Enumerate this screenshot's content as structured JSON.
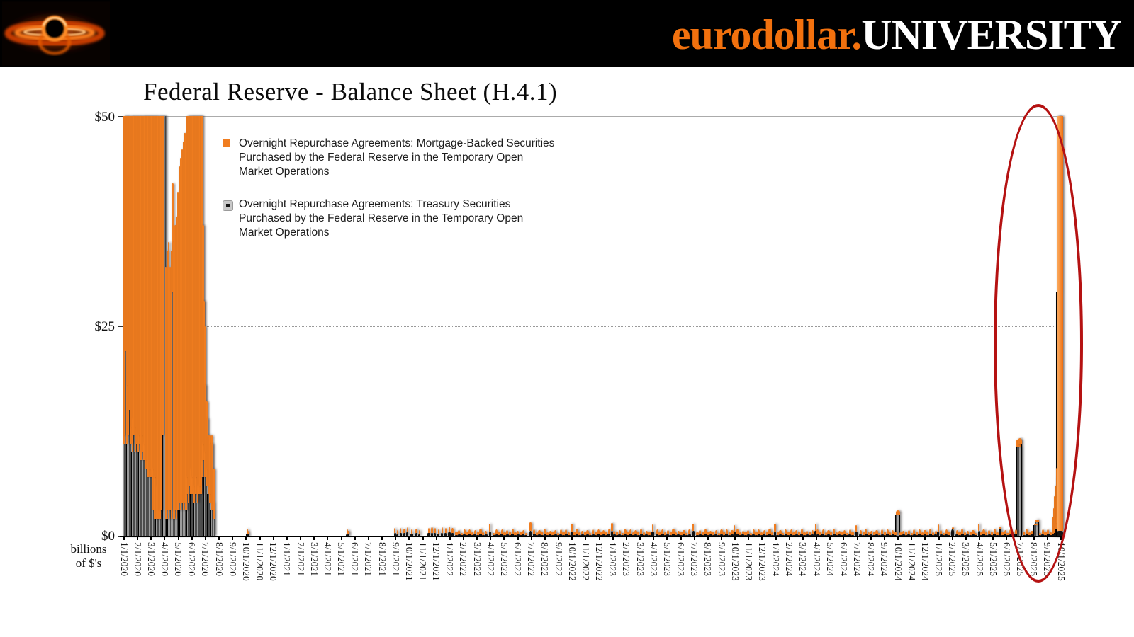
{
  "header": {
    "brand_orange": "eurodollar.",
    "brand_white": "UNIVERSITY",
    "logo": "black-hole-accretion-disk-logo"
  },
  "chart": {
    "title": "Federal Reserve - Balance Sheet (H.4.1)",
    "y_axis": {
      "tick_labels": [
        "$50",
        "$25",
        "$0"
      ],
      "unit_lines": [
        "billions",
        "of $'s"
      ]
    },
    "legend": {
      "items": [
        {
          "marker": "orange-square",
          "marker_color": "#F07D20",
          "lines": [
            "Overnight Repurchase Agreements: Mortgage-Backed Securities",
            "Purchased by the Federal Reserve in the Temporary Open",
            "Market Operations"
          ]
        },
        {
          "marker": "gray-square-black-dot",
          "marker_color": "#C9C9C9",
          "marker_inner_color": "#141414",
          "lines": [
            "Overnight Repurchase Agreements: Treasury Securities",
            "Purchased by the Federal Reserve in the Temporary Open",
            "Market Operations"
          ]
        }
      ]
    }
  },
  "chart_data": {
    "type": "bar",
    "stacked": true,
    "title": "Federal Reserve - Balance Sheet (H.4.1)",
    "ylabel": "billions of $'s",
    "ylim": [
      0,
      50
    ],
    "yticks": [
      0,
      25,
      50
    ],
    "grid": "solid line at $50, dotted line at $25",
    "series_names": [
      "Overnight Repurchase Agreements: Treasury Securities Purchased by the Federal Reserve in the Temporary Open Market Operations",
      "Overnight Repurchase Agreements: Mortgage-Backed Securities Purchased by the Federal Reserve in the Temporary Open Market Operations"
    ],
    "colors": {
      "treasury": "#141414",
      "treasury_tall_sheen": "#A0A0A0",
      "mbs": "#F07D20",
      "annotation": "#B51212"
    },
    "timeline": {
      "start_label": "1/1/2020",
      "end_label": "10/1/2025",
      "total_days": 2100
    },
    "x_labels": [
      "1/1/2020",
      "2/1/2020",
      "3/1/2020",
      "4/1/2020",
      "5/1/2020",
      "6/1/2020",
      "7/1/2020",
      "8/1/2020",
      "9/1/2020",
      "10/1/2020",
      "11/1/2020",
      "12/1/2020",
      "1/1/2021",
      "2/1/2021",
      "3/1/2021",
      "4/1/2021",
      "5/1/2021",
      "6/1/2021",
      "7/1/2021",
      "8/1/2021",
      "9/1/2021",
      "10/1/2021",
      "11/1/2021",
      "12/1/2021",
      "1/1/2022",
      "2/1/2022",
      "3/1/2022",
      "4/1/2022",
      "5/1/2022",
      "6/1/2022",
      "7/1/2022",
      "8/1/2022",
      "9/1/2022",
      "10/1/2022",
      "11/1/2022",
      "12/1/2022",
      "1/1/2023",
      "2/1/2023",
      "3/1/2023",
      "4/1/2023",
      "5/1/2023",
      "6/1/2023",
      "7/1/2023",
      "8/1/2023",
      "9/1/2023",
      "10/1/2023",
      "11/1/2023",
      "12/1/2023",
      "1/1/2024",
      "2/1/2024",
      "3/1/2024",
      "4/1/2024",
      "5/1/2024",
      "6/1/2024",
      "7/1/2024",
      "8/1/2024",
      "9/1/2024",
      "10/1/2024",
      "11/1/2024",
      "12/1/2024",
      "1/1/2025",
      "2/1/2025",
      "3/1/2025",
      "4/1/2025",
      "5/1/2025",
      "6/1/2025",
      "7/1/2025",
      "8/1/2025",
      "9/1/2025",
      "10/1/2025"
    ],
    "bars_format": "[day_offset_from_1/1/2020, treasury_$B, mbs_$B, optional_bar_width_px]",
    "bars": [
      [
        0,
        11,
        40
      ],
      [
        2,
        12,
        40
      ],
      [
        4,
        22,
        30
      ],
      [
        6,
        11,
        42
      ],
      [
        8,
        18,
        34
      ],
      [
        10,
        12,
        40
      ],
      [
        13,
        15,
        37
      ],
      [
        15,
        11,
        41
      ],
      [
        17,
        13,
        39
      ],
      [
        19,
        10,
        44
      ],
      [
        21,
        14,
        38
      ],
      [
        23,
        12,
        40
      ],
      [
        25,
        10,
        43
      ],
      [
        27,
        13,
        39
      ],
      [
        29,
        11,
        41
      ],
      [
        31,
        10,
        42
      ],
      [
        33,
        11,
        41
      ],
      [
        35,
        12,
        40
      ],
      [
        37,
        10,
        42
      ],
      [
        39,
        9,
        44
      ],
      [
        41,
        10,
        42
      ],
      [
        43,
        12,
        40
      ],
      [
        45,
        9,
        44
      ],
      [
        47,
        11,
        41
      ],
      [
        49,
        8,
        45
      ],
      [
        51,
        9,
        43
      ],
      [
        53,
        8,
        45
      ],
      [
        55,
        7,
        46
      ],
      [
        57,
        8,
        44
      ],
      [
        59,
        7,
        46
      ],
      [
        61,
        8,
        44
      ],
      [
        63,
        7,
        45
      ],
      [
        65,
        3,
        49
      ],
      [
        67,
        8,
        44
      ],
      [
        69,
        2,
        51
      ],
      [
        71,
        7,
        45
      ],
      [
        73,
        2,
        52
      ],
      [
        75,
        6,
        46
      ],
      [
        77,
        2,
        50
      ],
      [
        79,
        3,
        51
      ],
      [
        81,
        2,
        49
      ],
      [
        83,
        3,
        50
      ],
      [
        85,
        54,
        2
      ],
      [
        87,
        12,
        41
      ],
      [
        89,
        55,
        2
      ],
      [
        91,
        51,
        3
      ],
      [
        94,
        2,
        30
      ],
      [
        97,
        3,
        31
      ],
      [
        100,
        2,
        33
      ],
      [
        103,
        3,
        29
      ],
      [
        106,
        2,
        32
      ],
      [
        109,
        29,
        13
      ],
      [
        112,
        2,
        33
      ],
      [
        115,
        3,
        34
      ],
      [
        118,
        2,
        36
      ],
      [
        121,
        3,
        38
      ],
      [
        124,
        4,
        40
      ],
      [
        127,
        3,
        42
      ],
      [
        130,
        4,
        42
      ],
      [
        133,
        3,
        44
      ],
      [
        136,
        4,
        44
      ],
      [
        139,
        3,
        45
      ],
      [
        141,
        5,
        46
      ],
      [
        143,
        7,
        44
      ],
      [
        145,
        4,
        47
      ],
      [
        147,
        6,
        45
      ],
      [
        149,
        5,
        46
      ],
      [
        151,
        8,
        43
      ],
      [
        153,
        5,
        46
      ],
      [
        155,
        7,
        44
      ],
      [
        157,
        4,
        47
      ],
      [
        159,
        6,
        45
      ],
      [
        161,
        5,
        46
      ],
      [
        163,
        7,
        44
      ],
      [
        165,
        4,
        47
      ],
      [
        167,
        6,
        45
      ],
      [
        169,
        5,
        46
      ],
      [
        171,
        6,
        45
      ],
      [
        173,
        5,
        46
      ],
      [
        175,
        7,
        44
      ],
      [
        177,
        9,
        28
      ],
      [
        179,
        11,
        17
      ],
      [
        181,
        7,
        18
      ],
      [
        183,
        10,
        8
      ],
      [
        185,
        6,
        10
      ],
      [
        187,
        8,
        6
      ],
      [
        189,
        5,
        7
      ],
      [
        191,
        6,
        6
      ],
      [
        193,
        4,
        8
      ],
      [
        195,
        5,
        6
      ],
      [
        197,
        3,
        9
      ],
      [
        199,
        4,
        7
      ],
      [
        201,
        2,
        6
      ],
      [
        276,
        0.25,
        0.6
      ],
      [
        278,
        0.15,
        0.45
      ],
      [
        500,
        0.2,
        0.55
      ],
      [
        503,
        0.15,
        0.45
      ],
      [
        607,
        0.3,
        0.6
      ],
      [
        613,
        0.2,
        0.5
      ],
      [
        620,
        0.35,
        0.6
      ],
      [
        628,
        0.3,
        0.55
      ],
      [
        635,
        0.4,
        0.65
      ],
      [
        645,
        0.25,
        0.5
      ],
      [
        655,
        0.3,
        0.55
      ],
      [
        662,
        0.2,
        0.45
      ],
      [
        683,
        0.3,
        0.6
      ],
      [
        690,
        0.35,
        0.65
      ],
      [
        697,
        0.3,
        0.6
      ],
      [
        705,
        0.25,
        0.55
      ],
      [
        713,
        0.35,
        0.65
      ],
      [
        721,
        0.3,
        0.6
      ],
      [
        729,
        0.4,
        0.7
      ],
      [
        736,
        0.3,
        0.6
      ],
      [
        820,
        0.5,
        0.9
      ],
      [
        911,
        0.6,
        1.0
      ],
      [
        1003,
        0.5,
        0.9
      ],
      [
        1094,
        0.6,
        0.9
      ],
      [
        1185,
        0.5,
        0.85
      ],
      [
        1276,
        0.55,
        0.9
      ],
      [
        1368,
        0.5,
        0.8
      ],
      [
        1459,
        0.5,
        0.9
      ],
      [
        1550,
        0.55,
        0.9
      ],
      [
        1641,
        0.5,
        0.8
      ],
      [
        1734,
        2.5,
        0.55,
        6
      ],
      [
        1825,
        0.5,
        0.85
      ],
      [
        1857,
        0.8,
        0.25,
        3
      ],
      [
        1916,
        0.55,
        0.9
      ],
      [
        1963,
        0.85,
        0.25,
        3
      ],
      [
        2005,
        10.6,
        0.9,
        6
      ],
      [
        2008,
        10.9,
        0.7,
        6
      ],
      [
        2043,
        1.3,
        0.15,
        5
      ],
      [
        2046,
        1.7,
        0.2,
        5
      ],
      [
        2082,
        0.2,
        2.0
      ],
      [
        2084,
        0.3,
        3.0
      ],
      [
        2086,
        0.5,
        4.2
      ],
      [
        2088,
        0.8,
        5.2
      ],
      [
        2090,
        1.0,
        6.0
      ],
      [
        2091,
        1.5,
        6.6,
        2.6
      ],
      [
        2092,
        2.2,
        7.0,
        2.6
      ],
      [
        2093,
        4.5,
        5.5,
        2.6
      ],
      [
        2095,
        29,
        25,
        6
      ],
      [
        2098,
        0.6,
        49.4,
        8
      ]
    ],
    "baseline_activity": {
      "note": "near-continuous small daily repo operations Jan 2022 through Sep 2025, approx $0.4-0.9B",
      "start_day": 745,
      "end_day": 2078,
      "step_days": 6,
      "cycle_treasury_mbs": [
        [
          0.12,
          0.38
        ],
        [
          0.18,
          0.5
        ],
        [
          0.08,
          0.3
        ],
        [
          0.2,
          0.55
        ],
        [
          0.12,
          0.42
        ],
        [
          0.25,
          0.55
        ],
        [
          0.08,
          0.34
        ],
        [
          0.16,
          0.48
        ],
        [
          0.12,
          0.38
        ],
        [
          0.28,
          0.6
        ],
        [
          0.08,
          0.33
        ],
        [
          0.18,
          0.45
        ]
      ]
    },
    "annotation": {
      "type": "ellipse",
      "color": "#B51212",
      "highlights": "Oct 2025 spike: MBS repo to ~$50B+, Treasury repo to ~$29B",
      "center_day": 2049,
      "rx_days": 100,
      "center_value": 23,
      "ry_value": 28.5
    }
  }
}
